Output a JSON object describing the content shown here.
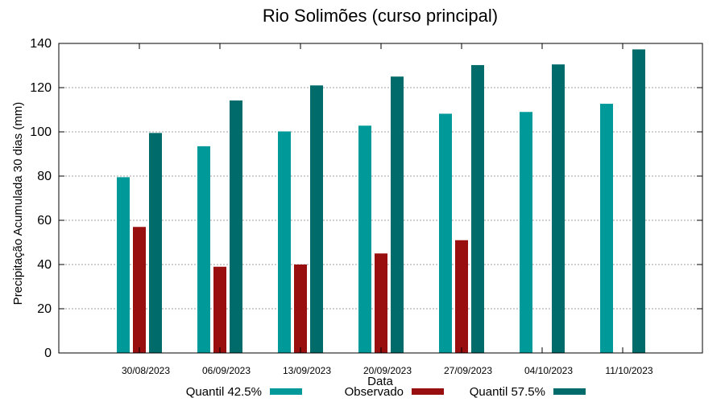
{
  "chart_data": {
    "type": "bar",
    "title": "Rio Solimões (curso principal)",
    "xlabel": "Data",
    "ylabel": "Precipitação Acumulada 30 dias (mm)",
    "ylim": [
      0,
      140
    ],
    "yticks": [
      0,
      20,
      40,
      60,
      80,
      100,
      120,
      140
    ],
    "grid": true,
    "legend_position": "bottom",
    "categories": [
      "30/08/2023",
      "06/09/2023",
      "13/09/2023",
      "20/09/2023",
      "27/09/2023",
      "04/10/2023",
      "11/10/2023"
    ],
    "series": [
      {
        "name": "Quantil 42.5%",
        "color": "#009999",
        "values": [
          79.5,
          93.5,
          100.2,
          102.8,
          108.2,
          109.0,
          112.7
        ]
      },
      {
        "name": "Observado",
        "color": "#990f0f",
        "values": [
          57.0,
          39.0,
          40.0,
          45.0,
          51.0,
          null,
          null
        ]
      },
      {
        "name": "Quantil 57.5%",
        "color": "#006b6b",
        "values": [
          99.5,
          114.2,
          121.0,
          125.0,
          130.2,
          130.5,
          137.3
        ]
      }
    ]
  }
}
